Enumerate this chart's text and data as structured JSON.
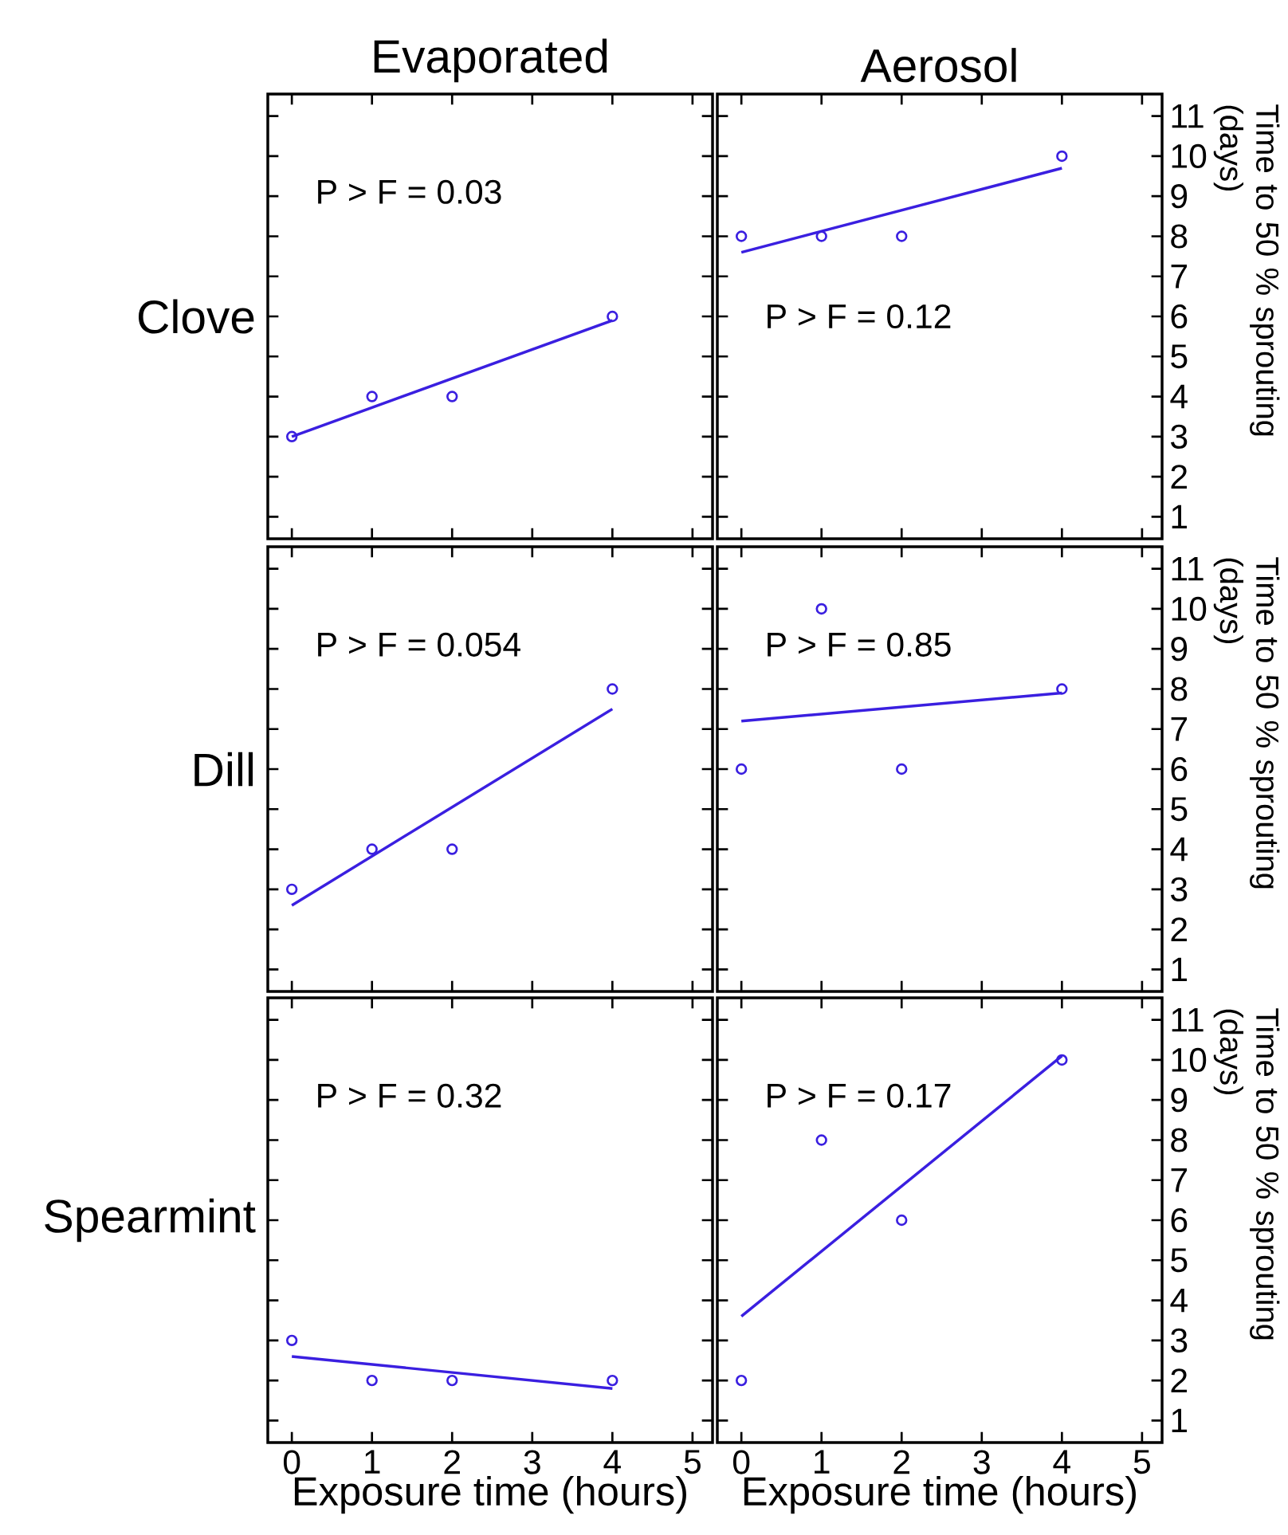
{
  "chart_data": [
    {
      "type": "scatter",
      "title": "Evaporated",
      "ylabel": "Clove",
      "xlim": [
        -0.3,
        5.25
      ],
      "ylim": [
        0.45,
        11.55
      ],
      "xticks": [
        0,
        1,
        2,
        3,
        4,
        5
      ],
      "yticks": [
        1,
        2,
        3,
        4,
        5,
        6,
        7,
        8,
        9,
        10,
        11
      ],
      "tick_labels": false,
      "annotations": [
        "P > F = 0.03"
      ],
      "series": [
        {
          "type": "scatter",
          "color": "#3a1fe0",
          "marker": "circle",
          "x": [
            0,
            1,
            2,
            4
          ],
          "values": [
            3,
            4,
            4,
            6
          ]
        },
        {
          "type": "line",
          "color": "#3a1fe0",
          "line_style": "solid",
          "x": [
            0,
            4
          ],
          "values": [
            3.0,
            5.9
          ]
        }
      ]
    },
    {
      "type": "scatter",
      "title": "Aerosol",
      "ylabel": "Time to 50 % sprouting (days)",
      "xlim": [
        -0.3,
        5.25
      ],
      "ylim": [
        0.45,
        11.55
      ],
      "xticks": [
        0,
        1,
        2,
        3,
        4,
        5
      ],
      "yticks": [
        1,
        2,
        3,
        4,
        5,
        6,
        7,
        8,
        9,
        10,
        11
      ],
      "tick_labels": "y",
      "annotations": [
        "P > F = 0.12"
      ],
      "series": [
        {
          "type": "scatter",
          "color": "#3a1fe0",
          "marker": "circle",
          "x": [
            0,
            1,
            2,
            4
          ],
          "values": [
            8,
            8,
            8,
            10
          ]
        },
        {
          "type": "line",
          "color": "#3a1fe0",
          "line_style": "solid",
          "x": [
            0,
            4
          ],
          "values": [
            7.6,
            9.7
          ]
        }
      ]
    },
    {
      "type": "scatter",
      "ylabel": "Dill",
      "xlim": [
        -0.3,
        5.25
      ],
      "ylim": [
        0.45,
        11.55
      ],
      "xticks": [
        0,
        1,
        2,
        3,
        4,
        5
      ],
      "yticks": [
        1,
        2,
        3,
        4,
        5,
        6,
        7,
        8,
        9,
        10,
        11
      ],
      "tick_labels": false,
      "annotations": [
        "P > F = 0.054"
      ],
      "series": [
        {
          "type": "scatter",
          "color": "#3a1fe0",
          "marker": "circle",
          "x": [
            0,
            1,
            2,
            4
          ],
          "values": [
            3,
            4,
            4,
            8
          ]
        },
        {
          "type": "line",
          "color": "#3a1fe0",
          "line_style": "solid",
          "x": [
            0,
            4
          ],
          "values": [
            2.6,
            7.5
          ]
        }
      ]
    },
    {
      "type": "scatter",
      "ylabel": "Time to 50 % sprouting (days)",
      "xlim": [
        -0.3,
        5.25
      ],
      "ylim": [
        0.45,
        11.55
      ],
      "xticks": [
        0,
        1,
        2,
        3,
        4,
        5
      ],
      "yticks": [
        1,
        2,
        3,
        4,
        5,
        6,
        7,
        8,
        9,
        10,
        11
      ],
      "tick_labels": "y",
      "annotations": [
        "P > F = 0.85"
      ],
      "series": [
        {
          "type": "scatter",
          "color": "#3a1fe0",
          "marker": "circle",
          "x": [
            0,
            1,
            2,
            4
          ],
          "values": [
            6,
            10,
            6,
            8
          ]
        },
        {
          "type": "line",
          "color": "#3a1fe0",
          "line_style": "solid",
          "x": [
            0,
            4
          ],
          "values": [
            7.2,
            7.9
          ]
        }
      ]
    },
    {
      "type": "scatter",
      "ylabel": "Spearmint",
      "xlabel": "Exposure time (hours)",
      "xlim": [
        -0.3,
        5.25
      ],
      "ylim": [
        0.45,
        11.55
      ],
      "xticks": [
        0,
        1,
        2,
        3,
        4,
        5
      ],
      "yticks": [
        1,
        2,
        3,
        4,
        5,
        6,
        7,
        8,
        9,
        10,
        11
      ],
      "tick_labels": "x",
      "annotations": [
        "P > F = 0.32"
      ],
      "series": [
        {
          "type": "scatter",
          "color": "#3a1fe0",
          "marker": "circle",
          "x": [
            0,
            1,
            2,
            4
          ],
          "values": [
            3,
            2,
            2,
            2
          ]
        },
        {
          "type": "line",
          "color": "#3a1fe0",
          "line_style": "solid",
          "x": [
            0,
            4
          ],
          "values": [
            2.6,
            1.8
          ]
        }
      ]
    },
    {
      "type": "scatter",
      "ylabel": "Time to 50 % sprouting (days)",
      "xlabel": "Exposure time (hours)",
      "xlim": [
        -0.3,
        5.25
      ],
      "ylim": [
        0.45,
        11.55
      ],
      "xticks": [
        0,
        1,
        2,
        3,
        4,
        5
      ],
      "yticks": [
        1,
        2,
        3,
        4,
        5,
        6,
        7,
        8,
        9,
        10,
        11
      ],
      "annotations": [
        "P > F = 0.17"
      ],
      "series": [
        {
          "type": "scatter",
          "color": "#3a1fe0",
          "marker": "circle",
          "x": [
            0,
            1,
            2,
            4
          ],
          "values": [
            2,
            8,
            6,
            10
          ]
        },
        {
          "type": "line",
          "color": "#3a1fe0",
          "line_style": "solid",
          "x": [
            0,
            4
          ],
          "values": [
            3.6,
            10.1
          ]
        }
      ]
    }
  ]
}
